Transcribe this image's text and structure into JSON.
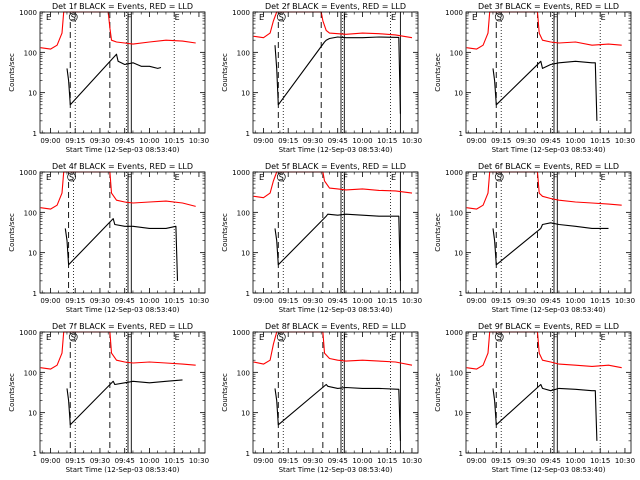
{
  "figure": {
    "ylabel": "Counts/sec",
    "xlabel": "Start Time (12-Sep-03 08:53:40)",
    "ytick_labels": [
      "1",
      "10",
      "100",
      "1000"
    ],
    "xtick_labels": [
      "09:00",
      "09:15",
      "09:30",
      "09:45",
      "10:00",
      "10:15",
      "10:30"
    ],
    "colors": {
      "events": "#000000",
      "lld": "#ff0000",
      "axes": "#000000",
      "background": "#ffffff"
    },
    "marker_letters": [
      "E",
      "S",
      "F",
      "E"
    ]
  },
  "chart_data": [
    {
      "type": "line",
      "title": "Det 1f BLACK = Events, RED = LLD",
      "xlabel": "Start Time (12-Sep-03 08:53:40)",
      "ylabel": "Counts/sec",
      "xlim": [
        "08:53:40",
        "10:33:40"
      ],
      "ylim": [
        1,
        1000
      ],
      "yscale": "log",
      "markers": [
        {
          "label": "E",
          "time": "08:57"
        },
        {
          "label": "S",
          "time": "09:12"
        },
        {
          "label": "F",
          "time": "09:46"
        },
        {
          "label": "E",
          "time": "10:15"
        }
      ],
      "dashed_lines": [
        "09:12",
        "09:36"
      ],
      "dotted_lines": [
        "09:15",
        "09:46",
        "10:15"
      ],
      "solid_lines": [
        "09:47",
        "09:49"
      ],
      "series": [
        {
          "name": "Events",
          "color": "#000000",
          "x": [
            "09:10",
            "09:11",
            "09:12",
            "09:40",
            "09:41",
            "09:45",
            "09:50",
            "09:55",
            "10:00",
            "10:05",
            "10:07"
          ],
          "y": [
            40,
            20,
            5,
            90,
            60,
            50,
            55,
            45,
            45,
            40,
            42
          ]
        },
        {
          "name": "LLD",
          "color": "#ff0000",
          "x": [
            "08:54",
            "09:00",
            "09:04",
            "09:07",
            "09:08",
            "09:10",
            "09:35",
            "09:36",
            "09:37",
            "09:40",
            "09:45",
            "09:50",
            "10:00",
            "10:10",
            "10:20",
            "10:28"
          ],
          "y": [
            130,
            120,
            150,
            300,
            1000,
            1000,
            1000,
            400,
            200,
            180,
            170,
            160,
            180,
            200,
            190,
            170
          ]
        }
      ]
    },
    {
      "type": "line",
      "title": "Det 2f BLACK = Events, RED = LLD",
      "xlabel": "Start Time (12-Sep-03 08:53:40)",
      "ylabel": "Counts/sec",
      "xlim": [
        "08:53:40",
        "10:33:40"
      ],
      "ylim": [
        1,
        1000
      ],
      "yscale": "log",
      "markers": [
        {
          "label": "E",
          "time": "08:57"
        },
        {
          "label": "S",
          "time": "09:09"
        },
        {
          "label": "F",
          "time": "09:48"
        },
        {
          "label": "E",
          "time": "10:17"
        }
      ],
      "dashed_lines": [
        "09:09",
        "09:35"
      ],
      "dotted_lines": [
        "09:12",
        "09:48",
        "10:17"
      ],
      "solid_lines": [
        "09:47",
        "09:49",
        "10:23"
      ],
      "series": [
        {
          "name": "Events",
          "color": "#000000",
          "x": [
            "09:07",
            "09:08",
            "09:09",
            "09:37",
            "09:38",
            "09:40",
            "09:45",
            "09:50",
            "10:00",
            "10:10",
            "10:22",
            "10:23"
          ],
          "y": [
            150,
            40,
            5,
            180,
            200,
            220,
            240,
            230,
            230,
            240,
            235,
            3
          ]
        },
        {
          "name": "LLD",
          "color": "#ff0000",
          "x": [
            "08:54",
            "09:00",
            "09:04",
            "09:06",
            "09:08",
            "09:10",
            "09:35",
            "09:36",
            "09:38",
            "09:40",
            "09:50",
            "10:00",
            "10:10",
            "10:20",
            "10:30"
          ],
          "y": [
            250,
            230,
            300,
            600,
            1000,
            1000,
            1000,
            600,
            350,
            300,
            280,
            300,
            290,
            270,
            230
          ]
        }
      ]
    },
    {
      "type": "line",
      "title": "Det 3f BLACK = Events, RED = LLD",
      "xlabel": "Start Time (12-Sep-03 08:53:40)",
      "ylabel": "Counts/sec",
      "xlim": [
        "08:53:40",
        "10:33:40"
      ],
      "ylim": [
        1,
        1000
      ],
      "yscale": "log",
      "markers": [
        {
          "label": "E",
          "time": "08:57"
        },
        {
          "label": "S",
          "time": "09:12"
        },
        {
          "label": "F",
          "time": "09:46"
        },
        {
          "label": "E",
          "time": "10:15"
        }
      ],
      "dashed_lines": [
        "09:12",
        "09:37"
      ],
      "dotted_lines": [
        "09:15",
        "09:46",
        "10:15"
      ],
      "solid_lines": [
        "09:47",
        "09:49"
      ],
      "series": [
        {
          "name": "Events",
          "color": "#000000",
          "x": [
            "09:10",
            "09:11",
            "09:12",
            "09:39",
            "09:40",
            "09:45",
            "09:50",
            "10:00",
            "10:10",
            "10:12",
            "10:13"
          ],
          "y": [
            40,
            20,
            5,
            60,
            40,
            50,
            55,
            60,
            55,
            55,
            2
          ]
        },
        {
          "name": "LLD",
          "color": "#ff0000",
          "x": [
            "08:54",
            "09:00",
            "09:04",
            "09:07",
            "09:08",
            "09:10",
            "09:37",
            "09:38",
            "09:40",
            "09:45",
            "09:50",
            "10:00",
            "10:10",
            "10:20",
            "10:28"
          ],
          "y": [
            130,
            120,
            150,
            300,
            1000,
            1000,
            1000,
            300,
            200,
            180,
            170,
            180,
            150,
            160,
            150
          ]
        }
      ]
    },
    {
      "type": "line",
      "title": "Det 4f BLACK = Events, RED = LLD",
      "xlabel": "Start Time (12-Sep-03 08:53:40)",
      "ylabel": "Counts/sec",
      "xlim": [
        "08:53:40",
        "10:33:40"
      ],
      "ylim": [
        1,
        1000
      ],
      "yscale": "log",
      "markers": [
        {
          "label": "E",
          "time": "08:57"
        },
        {
          "label": "S",
          "time": "09:11"
        },
        {
          "label": "F",
          "time": "09:46"
        },
        {
          "label": "E",
          "time": "10:15"
        }
      ],
      "dashed_lines": [
        "09:11",
        "09:36"
      ],
      "dotted_lines": [
        "09:14",
        "09:46",
        "10:15"
      ],
      "solid_lines": [
        "09:47",
        "09:49"
      ],
      "series": [
        {
          "name": "Events",
          "color": "#000000",
          "x": [
            "09:09",
            "09:10",
            "09:11",
            "09:38",
            "09:39",
            "09:45",
            "09:50",
            "10:00",
            "10:10",
            "10:16",
            "10:17"
          ],
          "y": [
            40,
            20,
            5,
            70,
            50,
            45,
            45,
            40,
            40,
            45,
            2
          ]
        },
        {
          "name": "LLD",
          "color": "#ff0000",
          "x": [
            "08:54",
            "09:00",
            "09:04",
            "09:07",
            "09:08",
            "09:10",
            "09:36",
            "09:37",
            "09:40",
            "09:45",
            "09:50",
            "10:00",
            "10:10",
            "10:20",
            "10:28"
          ],
          "y": [
            130,
            120,
            150,
            300,
            1000,
            1000,
            1000,
            300,
            200,
            180,
            170,
            180,
            190,
            170,
            140
          ]
        }
      ]
    },
    {
      "type": "line",
      "title": "Det 5f BLACK = Events, RED = LLD",
      "xlabel": "Start Time (12-Sep-03 08:53:40)",
      "ylabel": "Counts/sec",
      "xlim": [
        "08:53:40",
        "10:33:40"
      ],
      "ylim": [
        1,
        1000
      ],
      "yscale": "log",
      "markers": [
        {
          "label": "E",
          "time": "08:57"
        },
        {
          "label": "S",
          "time": "09:09"
        },
        {
          "label": "F",
          "time": "09:48"
        },
        {
          "label": "E",
          "time": "10:17"
        }
      ],
      "dashed_lines": [
        "09:09",
        "09:36"
      ],
      "dotted_lines": [
        "09:12",
        "09:48",
        "10:17"
      ],
      "solid_lines": [
        "09:47",
        "09:49",
        "10:23"
      ],
      "series": [
        {
          "name": "Events",
          "color": "#000000",
          "x": [
            "09:07",
            "09:08",
            "09:09",
            "09:38",
            "09:39",
            "09:45",
            "09:50",
            "10:00",
            "10:10",
            "10:22",
            "10:23"
          ],
          "y": [
            40,
            20,
            5,
            80,
            90,
            85,
            90,
            85,
            80,
            80,
            2
          ]
        },
        {
          "name": "LLD",
          "color": "#ff0000",
          "x": [
            "08:54",
            "09:00",
            "09:04",
            "09:06",
            "09:08",
            "09:10",
            "09:36",
            "09:37",
            "09:40",
            "09:45",
            "09:50",
            "10:00",
            "10:10",
            "10:20",
            "10:30"
          ],
          "y": [
            250,
            230,
            300,
            600,
            1000,
            1000,
            1000,
            600,
            400,
            380,
            360,
            380,
            350,
            340,
            300
          ]
        }
      ]
    },
    {
      "type": "line",
      "title": "Det 6f BLACK = Events, RED = LLD",
      "xlabel": "Start Time (12-Sep-03 08:53:40)",
      "ylabel": "Counts/sec",
      "xlim": [
        "08:53:40",
        "10:33:40"
      ],
      "ylim": [
        1,
        1000
      ],
      "yscale": "log",
      "markers": [
        {
          "label": "E",
          "time": "08:57"
        },
        {
          "label": "S",
          "time": "09:12"
        },
        {
          "label": "F",
          "time": "09:46"
        },
        {
          "label": "E",
          "time": "10:15"
        }
      ],
      "dashed_lines": [
        "09:12",
        "09:37"
      ],
      "dotted_lines": [
        "09:15",
        "09:46",
        "10:15"
      ],
      "solid_lines": [
        "09:47",
        "09:49"
      ],
      "series": [
        {
          "name": "Events",
          "color": "#000000",
          "x": [
            "09:10",
            "09:11",
            "09:12",
            "09:39",
            "09:40",
            "09:45",
            "09:50",
            "10:00",
            "10:10",
            "10:20"
          ],
          "y": [
            40,
            20,
            5,
            40,
            50,
            55,
            50,
            45,
            40,
            40
          ]
        },
        {
          "name": "LLD",
          "color": "#ff0000",
          "x": [
            "08:54",
            "09:00",
            "09:04",
            "09:07",
            "09:08",
            "09:10",
            "09:37",
            "09:38",
            "09:40",
            "09:45",
            "09:50",
            "10:00",
            "10:10",
            "10:20",
            "10:28"
          ],
          "y": [
            130,
            120,
            150,
            300,
            1000,
            1000,
            1000,
            300,
            250,
            220,
            200,
            180,
            170,
            160,
            150
          ]
        }
      ]
    },
    {
      "type": "line",
      "title": "Det 7f BLACK = Events, RED = LLD",
      "xlabel": "Start Time (12-Sep-03 08:53:40)",
      "ylabel": "Counts/sec",
      "xlim": [
        "08:53:40",
        "10:33:40"
      ],
      "ylim": [
        1,
        1000
      ],
      "yscale": "log",
      "markers": [
        {
          "label": "E",
          "time": "08:57"
        },
        {
          "label": "S",
          "time": "09:12"
        },
        {
          "label": "F",
          "time": "09:46"
        },
        {
          "label": "E",
          "time": "10:15"
        }
      ],
      "dashed_lines": [
        "09:12",
        "09:36"
      ],
      "dotted_lines": [
        "09:15",
        "09:46",
        "10:15"
      ],
      "solid_lines": [
        "09:47",
        "09:49"
      ],
      "series": [
        {
          "name": "Events",
          "color": "#000000",
          "x": [
            "09:10",
            "09:11",
            "09:12",
            "09:38",
            "09:39",
            "09:45",
            "09:50",
            "10:00",
            "10:10",
            "10:20"
          ],
          "y": [
            40,
            20,
            5,
            60,
            50,
            55,
            60,
            55,
            60,
            65
          ]
        },
        {
          "name": "LLD",
          "color": "#ff0000",
          "x": [
            "08:54",
            "09:00",
            "09:04",
            "09:07",
            "09:08",
            "09:10",
            "09:36",
            "09:37",
            "09:40",
            "09:45",
            "09:50",
            "10:00",
            "10:10",
            "10:20",
            "10:28"
          ],
          "y": [
            130,
            120,
            150,
            300,
            1000,
            1000,
            1000,
            300,
            200,
            180,
            170,
            180,
            170,
            160,
            150
          ]
        }
      ]
    },
    {
      "type": "line",
      "title": "Det 8f BLACK = Events, RED = LLD",
      "xlabel": "Start Time (12-Sep-03 08:53:40)",
      "ylabel": "Counts/sec",
      "xlim": [
        "08:53:40",
        "10:33:40"
      ],
      "ylim": [
        1,
        1000
      ],
      "yscale": "log",
      "markers": [
        {
          "label": "E",
          "time": "08:57"
        },
        {
          "label": "S",
          "time": "09:09"
        },
        {
          "label": "F",
          "time": "09:48"
        },
        {
          "label": "E",
          "time": "10:17"
        }
      ],
      "dashed_lines": [
        "09:09",
        "09:36"
      ],
      "dotted_lines": [
        "09:12",
        "09:48",
        "10:17"
      ],
      "solid_lines": [
        "09:47",
        "09:49",
        "10:23"
      ],
      "series": [
        {
          "name": "Events",
          "color": "#000000",
          "x": [
            "09:07",
            "09:08",
            "09:09",
            "09:38",
            "09:39",
            "09:45",
            "09:50",
            "10:00",
            "10:10",
            "10:22",
            "10:23"
          ],
          "y": [
            40,
            20,
            5,
            50,
            45,
            40,
            42,
            40,
            40,
            38,
            2
          ]
        },
        {
          "name": "LLD",
          "color": "#ff0000",
          "x": [
            "08:54",
            "09:00",
            "09:04",
            "09:06",
            "09:08",
            "09:10",
            "09:36",
            "09:37",
            "09:40",
            "09:45",
            "09:50",
            "10:00",
            "10:10",
            "10:20",
            "10:30"
          ],
          "y": [
            180,
            160,
            200,
            500,
            1000,
            1000,
            1000,
            300,
            220,
            200,
            190,
            200,
            190,
            180,
            150
          ]
        }
      ]
    },
    {
      "type": "line",
      "title": "Det 9f BLACK = Events, RED = LLD",
      "xlabel": "Start Time (12-Sep-03 08:53:40)",
      "ylabel": "Counts/sec",
      "xlim": [
        "08:53:40",
        "10:33:40"
      ],
      "ylim": [
        1,
        1000
      ],
      "yscale": "log",
      "markers": [
        {
          "label": "E",
          "time": "08:57"
        },
        {
          "label": "S",
          "time": "09:12"
        },
        {
          "label": "F",
          "time": "09:46"
        },
        {
          "label": "E",
          "time": "10:15"
        }
      ],
      "dashed_lines": [
        "09:12",
        "09:37"
      ],
      "dotted_lines": [
        "09:15",
        "09:46",
        "10:15"
      ],
      "solid_lines": [
        "09:47",
        "09:49"
      ],
      "series": [
        {
          "name": "Events",
          "color": "#000000",
          "x": [
            "09:10",
            "09:11",
            "09:12",
            "09:39",
            "09:40",
            "09:45",
            "09:50",
            "10:00",
            "10:10",
            "10:12",
            "10:13"
          ],
          "y": [
            40,
            20,
            5,
            50,
            40,
            35,
            40,
            38,
            35,
            35,
            2
          ]
        },
        {
          "name": "LLD",
          "color": "#ff0000",
          "x": [
            "08:54",
            "09:00",
            "09:04",
            "09:07",
            "09:08",
            "09:10",
            "09:37",
            "09:38",
            "09:40",
            "09:45",
            "09:50",
            "10:00",
            "10:10",
            "10:20",
            "10:28"
          ],
          "y": [
            130,
            120,
            150,
            300,
            1000,
            1000,
            1000,
            300,
            200,
            180,
            160,
            150,
            140,
            150,
            130
          ]
        }
      ]
    }
  ]
}
